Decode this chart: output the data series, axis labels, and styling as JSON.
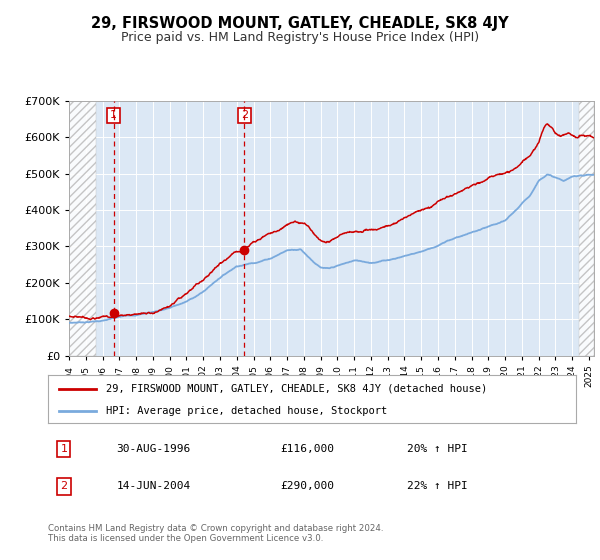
{
  "title": "29, FIRSWOOD MOUNT, GATLEY, CHEADLE, SK8 4JY",
  "subtitle": "Price paid vs. HM Land Registry's House Price Index (HPI)",
  "title_fontsize": 10.5,
  "subtitle_fontsize": 9,
  "sale1_date_num": 1996.66,
  "sale1_price": 116000,
  "sale1_label": "1",
  "sale1_date_str": "30-AUG-1996",
  "sale1_price_str": "£116,000",
  "sale1_hpi_str": "20% ↑ HPI",
  "sale2_date_num": 2004.45,
  "sale2_price": 290000,
  "sale2_label": "2",
  "sale2_date_str": "14-JUN-2004",
  "sale2_price_str": "£290,000",
  "sale2_hpi_str": "22% ↑ HPI",
  "xmin": 1994.0,
  "xmax": 2025.3,
  "ymin": 0,
  "ymax": 700000,
  "hatch_left_end": 1995.6,
  "hatch_right_start": 2024.4,
  "line_color_house": "#cc0000",
  "line_color_hpi": "#7aaadd",
  "dot_color": "#cc0000",
  "vline_color": "#cc0000",
  "legend_label1": "29, FIRSWOOD MOUNT, GATLEY, CHEADLE, SK8 4JY (detached house)",
  "legend_label2": "HPI: Average price, detached house, Stockport",
  "footer": "Contains HM Land Registry data © Crown copyright and database right 2024.\nThis data is licensed under the Open Government Licence v3.0.",
  "plot_bg_color": "#dce8f5",
  "fig_bg_color": "#ffffff"
}
